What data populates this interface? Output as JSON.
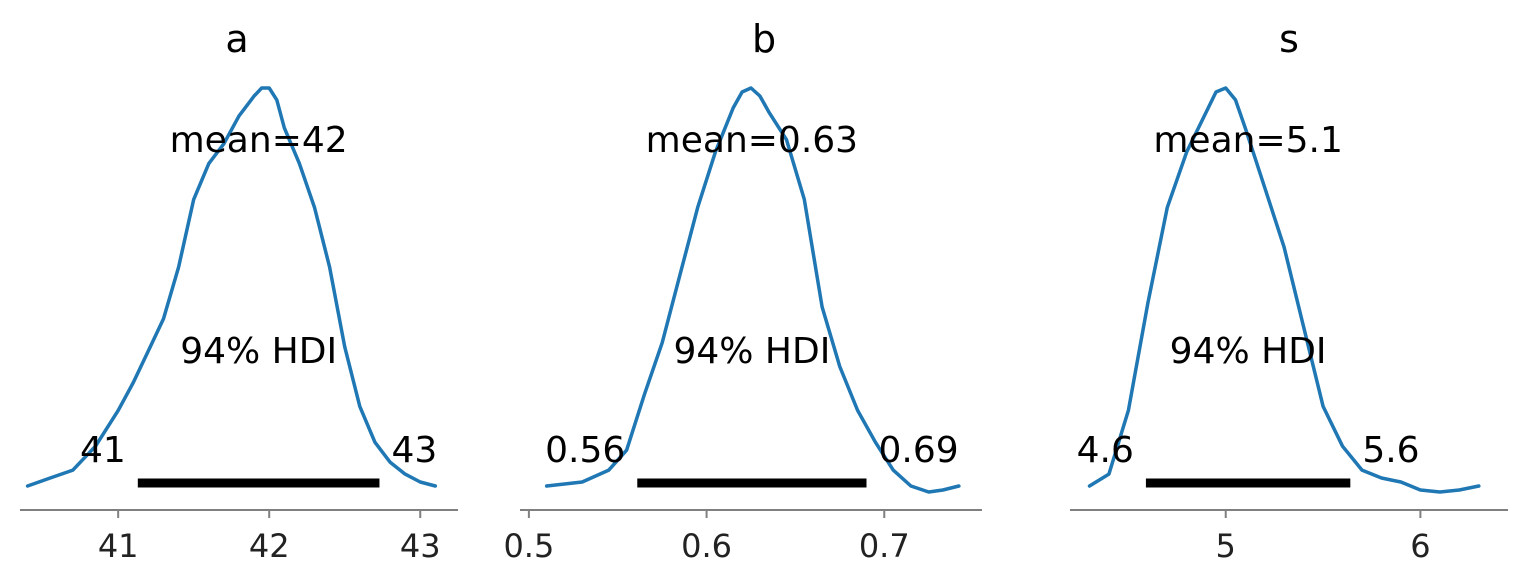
{
  "chart_data": [
    {
      "type": "line",
      "title": "a",
      "color": "#1f77b4",
      "xlim": [
        40.35,
        43.25
      ],
      "x_ticks": [
        41,
        42,
        43
      ],
      "x_tick_labels": [
        "41",
        "42",
        "43"
      ],
      "mean_label": "mean=42",
      "hdi_label": "94% HDI",
      "hdi": [
        41.13,
        42.73
      ],
      "hdi_lower_label": "41",
      "hdi_upper_label": "43",
      "density": {
        "x": [
          40.4,
          40.55,
          40.7,
          40.85,
          41.0,
          41.1,
          41.2,
          41.3,
          41.4,
          41.5,
          41.6,
          41.7,
          41.8,
          41.9,
          41.95,
          42.0,
          42.05,
          42.1,
          42.2,
          42.3,
          42.4,
          42.5,
          42.6,
          42.7,
          42.8,
          42.9,
          43.0,
          43.1
        ],
        "y": [
          0.0,
          0.02,
          0.04,
          0.1,
          0.19,
          0.26,
          0.34,
          0.42,
          0.55,
          0.72,
          0.81,
          0.86,
          0.93,
          0.98,
          1.0,
          1.0,
          0.97,
          0.9,
          0.81,
          0.7,
          0.55,
          0.35,
          0.2,
          0.11,
          0.06,
          0.03,
          0.01,
          0.0
        ]
      }
    },
    {
      "type": "line",
      "title": "b",
      "color": "#1f77b4",
      "xlim": [
        0.495,
        0.755
      ],
      "x_ticks": [
        0.5,
        0.6,
        0.7
      ],
      "x_tick_labels": [
        "0.5",
        "0.6",
        "0.7"
      ],
      "mean_label": "mean=0.63",
      "hdi_label": "94% HDI",
      "hdi": [
        0.561,
        0.69
      ],
      "hdi_lower_label": "0.56",
      "hdi_upper_label": "0.69",
      "density": {
        "x": [
          0.51,
          0.53,
          0.545,
          0.555,
          0.565,
          0.575,
          0.585,
          0.595,
          0.605,
          0.615,
          0.62,
          0.625,
          0.63,
          0.635,
          0.645,
          0.655,
          0.665,
          0.675,
          0.685,
          0.695,
          0.705,
          0.715,
          0.725,
          0.733,
          0.742
        ],
        "y": [
          0.0,
          0.01,
          0.04,
          0.09,
          0.23,
          0.36,
          0.53,
          0.7,
          0.84,
          0.95,
          0.99,
          1.0,
          0.98,
          0.94,
          0.87,
          0.72,
          0.45,
          0.3,
          0.19,
          0.11,
          0.04,
          0.0,
          -0.015,
          -0.01,
          0.0
        ]
      }
    },
    {
      "type": "line",
      "title": "s",
      "color": "#1f77b4",
      "xlim": [
        4.2,
        6.45
      ],
      "x_ticks": [
        5,
        6
      ],
      "x_tick_labels": [
        "5",
        "6"
      ],
      "mean_label": "mean=5.1",
      "hdi_label": "94% HDI",
      "hdi": [
        4.59,
        5.64
      ],
      "hdi_lower_label": "4.6",
      "hdi_upper_label": "5.6",
      "density": {
        "x": [
          4.3,
          4.4,
          4.5,
          4.6,
          4.7,
          4.8,
          4.9,
          4.95,
          5.0,
          5.05,
          5.1,
          5.2,
          5.3,
          5.4,
          5.5,
          5.6,
          5.7,
          5.8,
          5.9,
          6.0,
          6.1,
          6.2,
          6.3
        ],
        "y": [
          0.0,
          0.03,
          0.19,
          0.46,
          0.7,
          0.84,
          0.94,
          0.99,
          1.0,
          0.97,
          0.9,
          0.75,
          0.6,
          0.4,
          0.2,
          0.1,
          0.04,
          0.02,
          0.01,
          -0.01,
          -0.015,
          -0.01,
          0.0
        ]
      }
    }
  ]
}
